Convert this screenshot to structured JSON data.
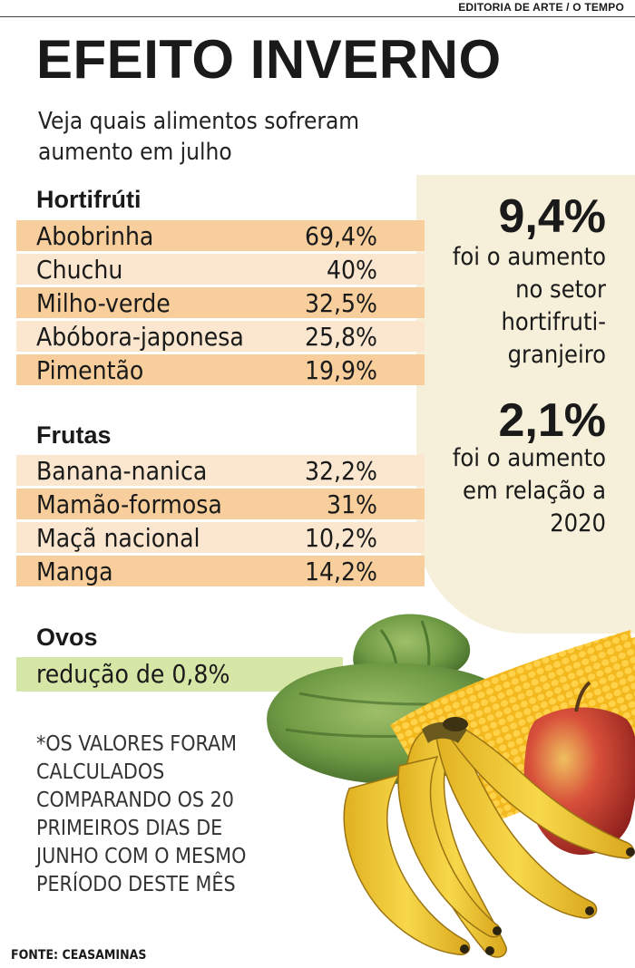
{
  "header": {
    "credit": "EDITORIA DE ARTE / O TEMPO"
  },
  "title": "EFEITO INVERNO",
  "subtitle": "Veja quais alimentos sofreram aumento em julho",
  "hortifruti": {
    "heading": "Hortifrúti",
    "items": [
      {
        "name": "Abobrinha",
        "value": "69,4%"
      },
      {
        "name": "Chuchu",
        "value": "40%"
      },
      {
        "name": "Milho-verde",
        "value": "32,5%"
      },
      {
        "name": "Abóbora-japonesa",
        "value": "25,8%"
      },
      {
        "name": "Pimentão",
        "value": "19,9%"
      }
    ]
  },
  "frutas": {
    "heading": "Frutas",
    "items": [
      {
        "name": "Banana-nanica",
        "value": "32,2%"
      },
      {
        "name": "Mamão-formosa",
        "value": "31%"
      },
      {
        "name": "Maçã nacional",
        "value": "10,2%"
      },
      {
        "name": "Manga",
        "value": "14,2%"
      }
    ]
  },
  "ovos": {
    "heading": "Ovos",
    "text": "redução de 0,8%"
  },
  "sidebar": {
    "stat1": {
      "value": "9,4%",
      "lines": [
        "foi o aumento",
        "no setor",
        "hortifruti-",
        "granjeiro"
      ]
    },
    "stat2": {
      "value": "2,1%",
      "lines": [
        "foi o aumento",
        "em relação a",
        "2020"
      ]
    }
  },
  "note": "*OS VALORES FORAM CALCULADOS COMPARANDO OS 20 PRIMEIROS DIAS DE JUNHO COM O MESMO PERÍODO DESTE MÊS",
  "source": "FONTE: CEASAMINAS",
  "colors": {
    "row_dark": "#f8cf9c",
    "row_light": "#fbe7cf",
    "egg_row": "#d6e6a7",
    "side_panel": "#f6efd9"
  }
}
